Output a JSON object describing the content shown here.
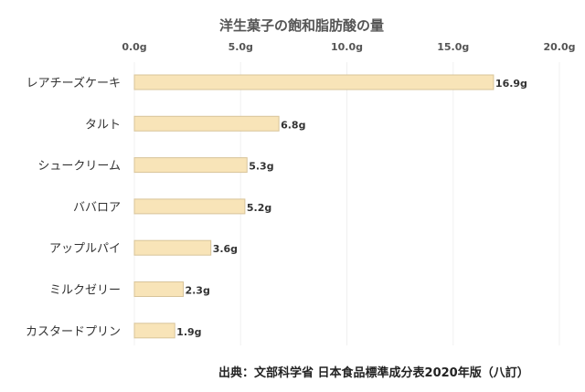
{
  "chart_data": {
    "type": "bar",
    "orientation": "horizontal",
    "title": "洋生菓子の飽和脂肪酸の量",
    "categories": [
      "レアチーズケーキ",
      "タルト",
      "シュークリーム",
      "ババロア",
      "アップルパイ",
      "ミルクゼリー",
      "カスタードプリン"
    ],
    "values": [
      16.9,
      6.8,
      5.3,
      5.2,
      3.6,
      2.3,
      1.9
    ],
    "data_labels": [
      "16.9g",
      "6.8g",
      "5.3g",
      "5.2g",
      "3.6g",
      "2.3g",
      "1.9g"
    ],
    "xlim": [
      0,
      20
    ],
    "xticks": [
      0,
      5,
      10,
      15,
      20
    ],
    "xtick_labels": [
      "0.0g",
      "5.0g",
      "10.0g",
      "15.0g",
      "20.0g"
    ],
    "xaxis_position": "top",
    "grid": true,
    "bar_color": "#f8e4b8",
    "bar_border": "#d8c49a"
  },
  "source": "出典：文部科学省 日本食品標準成分表2020年版（八訂）"
}
